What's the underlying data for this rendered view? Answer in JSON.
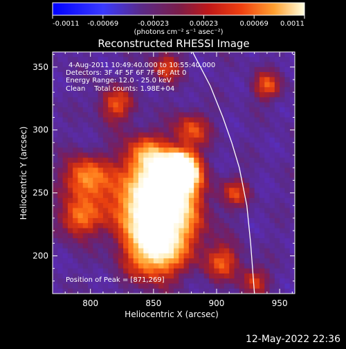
{
  "colorbar": {
    "tick_labels": [
      "-0.0011",
      "-0.00069",
      "-0.00023",
      "0.00023",
      "0.00069",
      "0.0011"
    ],
    "unit_label": "(photons cm⁻² s⁻¹ asec⁻²)",
    "range": [
      -0.0011,
      0.0011
    ]
  },
  "chart_data": {
    "type": "heatmap",
    "title": "Reconstructed RHESSI Image",
    "xlabel": "Heliocentric X (arcsec)",
    "ylabel": "Heliocentric Y (arcsec)",
    "xlim": [
      770,
      962
    ],
    "ylim": [
      170,
      362
    ],
    "x_ticks": [
      800,
      850,
      900,
      950
    ],
    "y_ticks": [
      200,
      250,
      300,
      350
    ],
    "annotations": [
      "4-Aug-2011 10:49:40.000 to 10:55:40.000",
      "Detectors: 3F 4F 5F 6F 7F 8F, Att 0",
      "Energy Range: 12.0 - 25.0 keV",
      "Clean    Total counts: 1.98E+04"
    ],
    "peak_label": "Position of Peak = [871,269]",
    "peak": {
      "x": 871,
      "y": 269
    },
    "limb_curve": [
      [
        881,
        362
      ],
      [
        895,
        335
      ],
      [
        905,
        310
      ],
      [
        912,
        290
      ],
      [
        918,
        270
      ],
      [
        924,
        240
      ],
      [
        927,
        210
      ],
      [
        930,
        170
      ]
    ],
    "colormap": [
      "#0000ff",
      "#4040ff",
      "#5a2bb0",
      "#5a2a8a",
      "#7a1d5a",
      "#b02020",
      "#e84010",
      "#ff7a1a",
      "#ffb84a",
      "#fff0c0",
      "#ffffff"
    ]
  },
  "footer": {
    "timestamp": "12-May-2022 22:36"
  }
}
